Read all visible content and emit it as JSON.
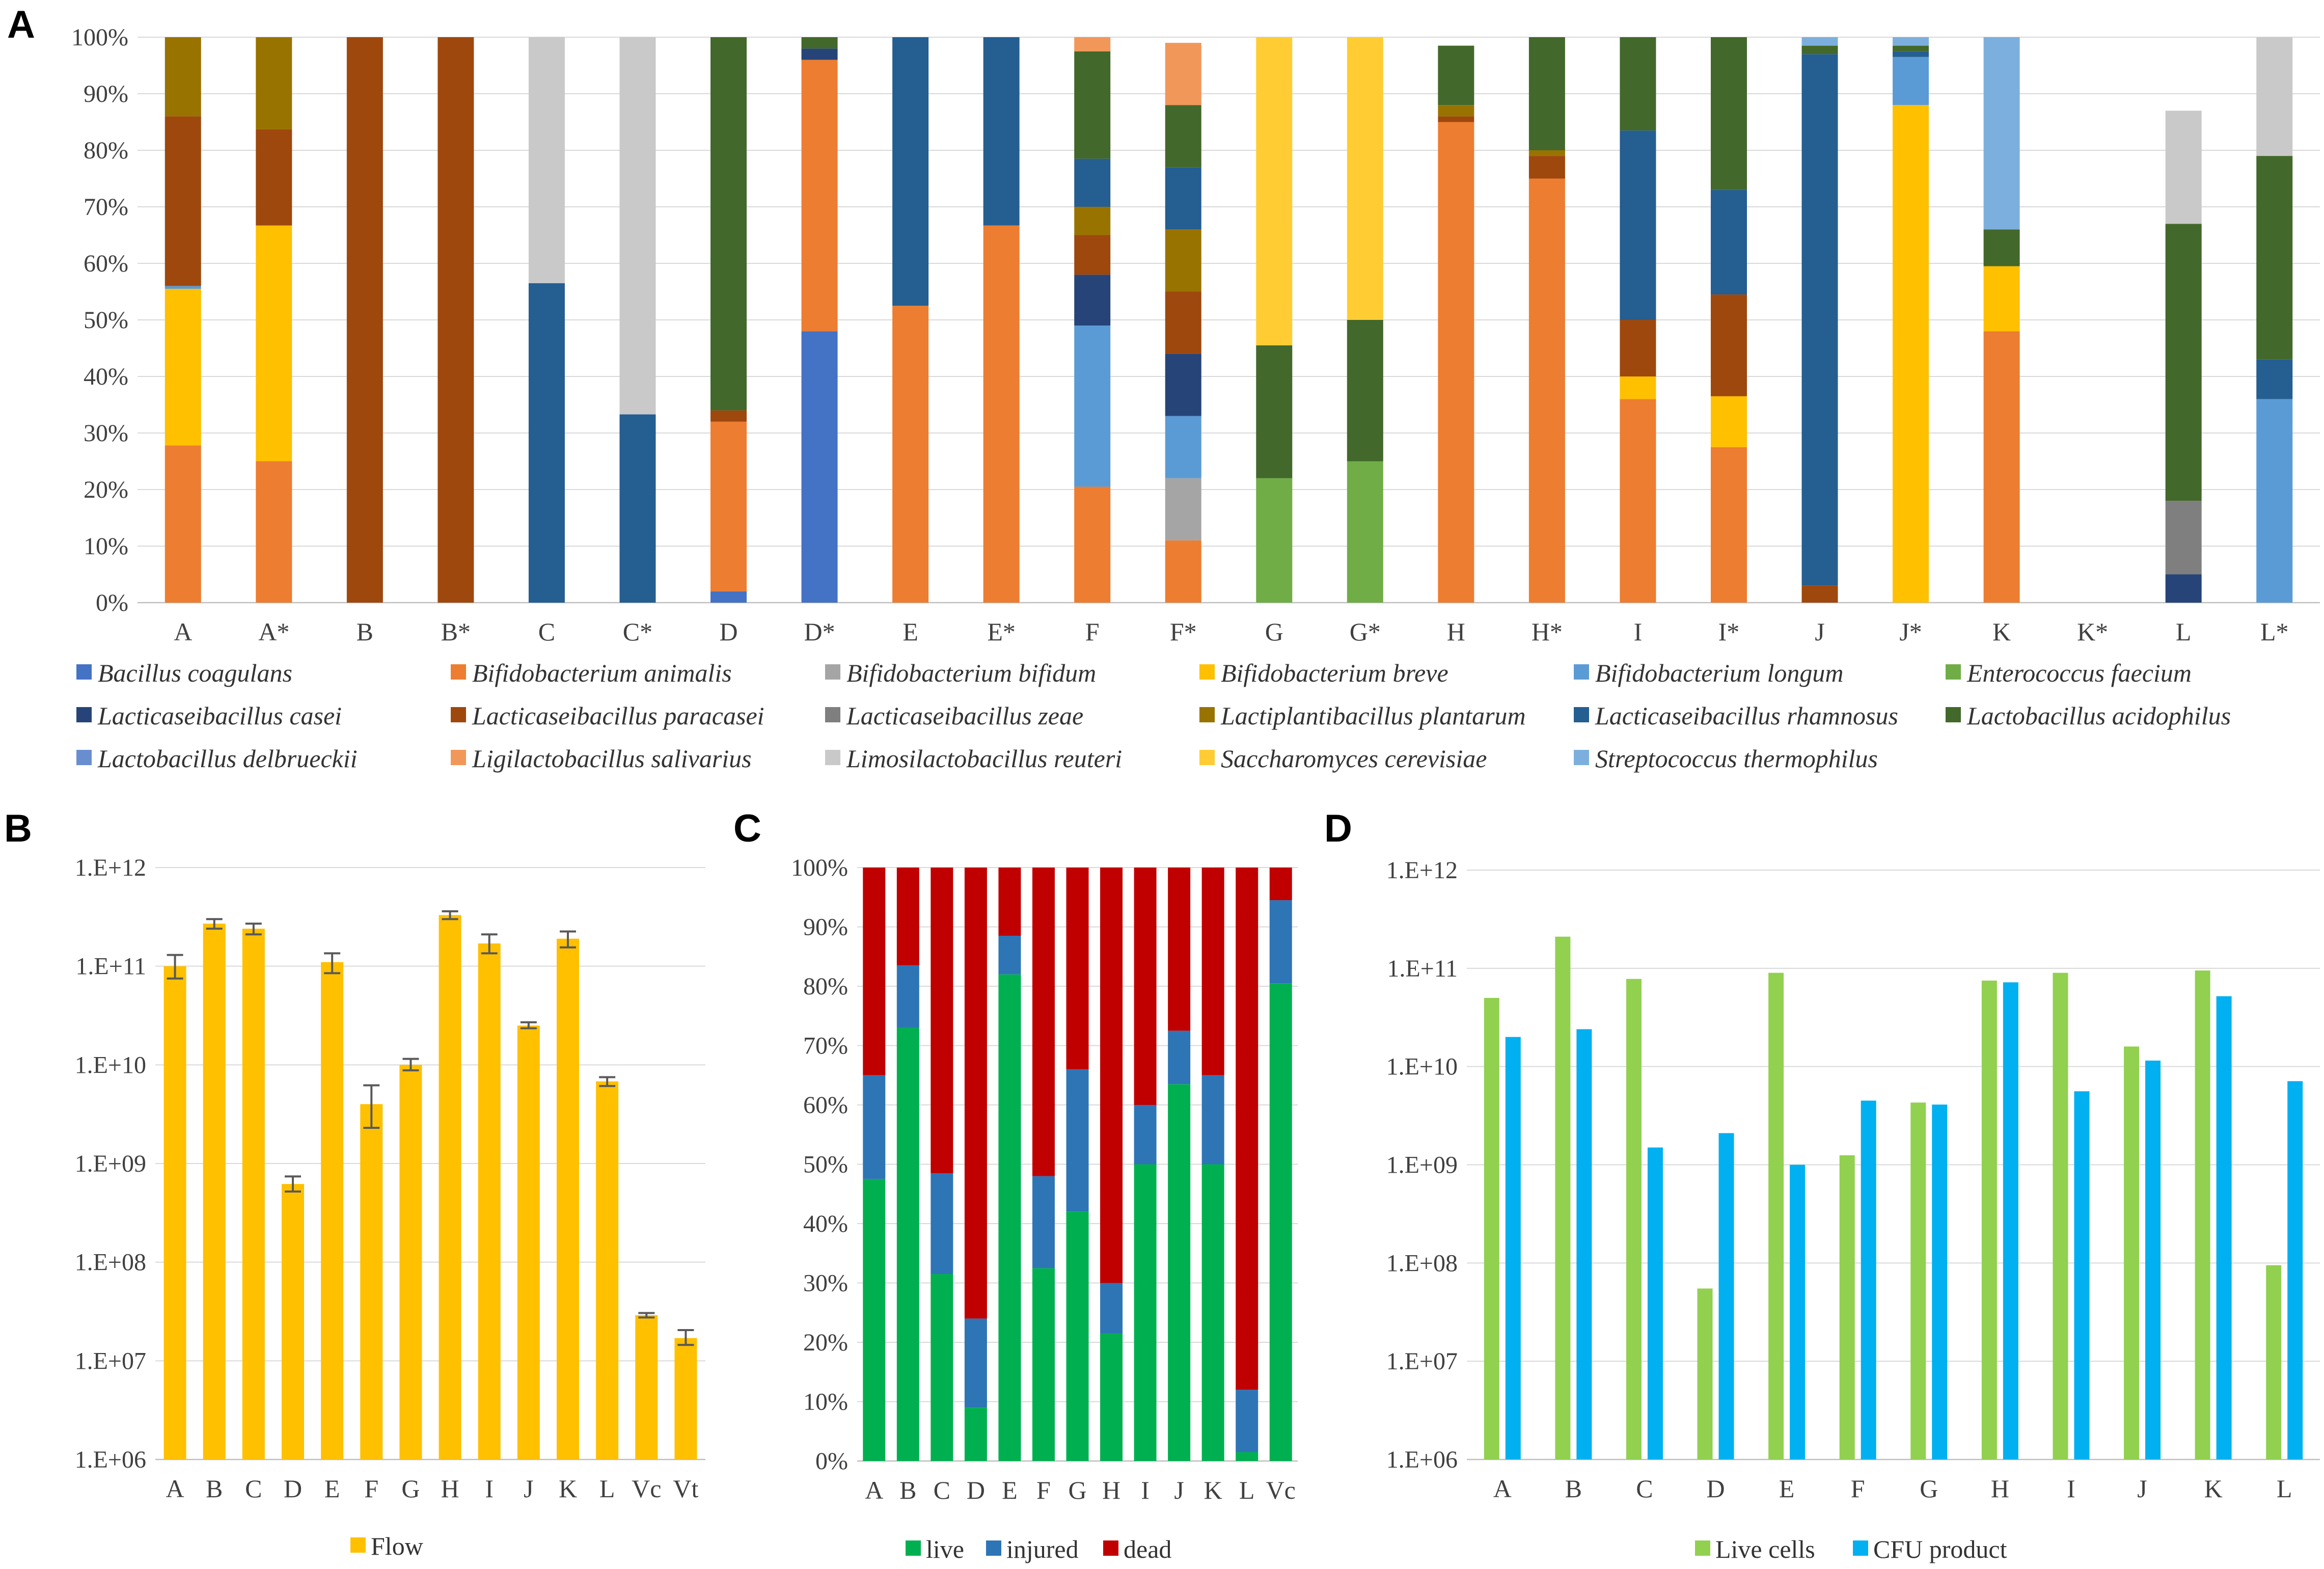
{
  "panels": [
    "A",
    "B",
    "C",
    "D"
  ],
  "chart_data": [
    {
      "panel": "A",
      "type": "bar",
      "stacked": true,
      "title": "",
      "xlabel": "",
      "ylabel": "",
      "ylim": [
        0,
        100
      ],
      "y_ticks": [
        "0%",
        "10%",
        "20%",
        "30%",
        "40%",
        "50%",
        "60%",
        "70%",
        "80%",
        "90%",
        "100%"
      ],
      "categories": [
        "A",
        "A*",
        "B",
        "B*",
        "C",
        "C*",
        "D",
        "D*",
        "E",
        "E*",
        "F",
        "F*",
        "G",
        "G*",
        "H",
        "H*",
        "I",
        "I*",
        "J",
        "J*",
        "K",
        "K*",
        "L",
        "L*"
      ],
      "series": [
        {
          "name": "Bacillus coagulans",
          "color": "#4472C4",
          "values": [
            0,
            0,
            0,
            0,
            0,
            0,
            2,
            48,
            0,
            0,
            0,
            0,
            0,
            0,
            0,
            0,
            0,
            0,
            0,
            0,
            0,
            0,
            0,
            0
          ]
        },
        {
          "name": "Bifidobacterium animalis",
          "color": "#ED7D31",
          "values": [
            27.8,
            25,
            0,
            0,
            0,
            0,
            30,
            48,
            52.5,
            66.7,
            20.5,
            11,
            0,
            0,
            85,
            75,
            36,
            27.5,
            0,
            0,
            48,
            0,
            0,
            0
          ]
        },
        {
          "name": "Bifidobacterium bifidum",
          "color": "#A5A5A5",
          "values": [
            0,
            0,
            0,
            0,
            0,
            0,
            0,
            0,
            0,
            0,
            0,
            11,
            0,
            0,
            0,
            0,
            0,
            0,
            0,
            0,
            0,
            0,
            0,
            0
          ]
        },
        {
          "name": "Bifidobacterium breve",
          "color": "#FFC000",
          "values": [
            27.7,
            41.7,
            0,
            0,
            0,
            0,
            0,
            0,
            0,
            0,
            0,
            0,
            0,
            0,
            0,
            0,
            4,
            9,
            0,
            88,
            11.5,
            0,
            0,
            0
          ]
        },
        {
          "name": "Bifidobacterium longum",
          "color": "#5B9BD5",
          "values": [
            0.5,
            0,
            0,
            0,
            0,
            0,
            0,
            0,
            0,
            0,
            28.5,
            11,
            0,
            0,
            0,
            0,
            0,
            0,
            0,
            8.5,
            0,
            0,
            0,
            36
          ]
        },
        {
          "name": "Enterococcus faecium",
          "color": "#70AD47",
          "values": [
            0,
            0,
            0,
            0,
            0,
            0,
            0,
            0,
            0,
            0,
            0,
            0,
            22,
            25,
            0,
            0,
            0,
            0,
            0,
            0,
            0,
            0,
            0,
            0
          ]
        },
        {
          "name": "Lacticaseibacillus casei",
          "color": "#264478",
          "values": [
            0,
            0,
            0,
            0,
            0,
            0,
            0,
            2,
            0,
            0,
            9,
            11,
            0,
            0,
            0,
            0,
            0,
            0,
            0,
            0,
            0,
            0,
            5,
            0
          ]
        },
        {
          "name": "Lacticaseibacillus paracasei",
          "color": "#9E480E",
          "values": [
            30,
            17,
            100,
            100,
            0,
            0,
            2,
            0,
            0,
            0,
            7,
            11,
            0,
            0,
            1,
            4,
            10,
            18,
            3,
            0,
            0,
            0,
            0,
            0
          ]
        },
        {
          "name": "Lacticaseibacillus zeae",
          "color": "#7F7F7F",
          "values": [
            0,
            0,
            0,
            0,
            0,
            0,
            0,
            0,
            0,
            0,
            0,
            0,
            0,
            0,
            0,
            0,
            0,
            0,
            0,
            0,
            0,
            0,
            13,
            0
          ]
        },
        {
          "name": "Lactiplantibacillus plantarum",
          "color": "#997300",
          "values": [
            14,
            16.7,
            0,
            0,
            0,
            0,
            0,
            0,
            0,
            0,
            5,
            11,
            0,
            0,
            2,
            1,
            0,
            0,
            0,
            0,
            0,
            0,
            0,
            0
          ]
        },
        {
          "name": "Lacticaseibacillus rhamnosus",
          "color": "#255E91",
          "values": [
            0,
            0,
            0,
            0,
            56.5,
            33.3,
            0,
            0,
            47.5,
            33.3,
            8.5,
            11,
            0,
            0,
            0,
            0,
            33.5,
            18.5,
            94,
            1,
            0,
            0,
            0,
            7
          ]
        },
        {
          "name": "Lactobacillus acidophilus",
          "color": "#43682B",
          "values": [
            0,
            0,
            0,
            0,
            0,
            0,
            66,
            2,
            0,
            0,
            19,
            11,
            23.5,
            25,
            10.5,
            20,
            16.5,
            27,
            1.5,
            1,
            6.5,
            0,
            49,
            36
          ]
        },
        {
          "name": "Lactobacillus delbrueckii",
          "color": "#698ED0",
          "values": [
            0,
            0,
            0,
            0,
            0,
            0,
            0,
            0,
            0,
            0,
            0,
            0,
            0,
            0,
            0,
            0,
            0,
            0,
            0,
            0,
            0,
            0,
            0,
            0
          ]
        },
        {
          "name": "Ligilactobacillus salivarius",
          "color": "#F1975A",
          "values": [
            0,
            0,
            0,
            0,
            0,
            0,
            0,
            0,
            0,
            0,
            2.5,
            11,
            0,
            0,
            0,
            0,
            0,
            0,
            0,
            0,
            0,
            0,
            0,
            0
          ]
        },
        {
          "name": "Limosilactobacillus reuteri",
          "color": "#C9C9C9",
          "values": [
            0,
            0,
            0,
            0,
            43.5,
            66.7,
            0,
            0,
            0,
            0,
            0,
            0,
            0,
            0,
            0,
            0,
            0,
            0,
            0,
            0,
            0,
            0,
            20,
            21
          ]
        },
        {
          "name": "Saccharomyces cerevisiae",
          "color": "#FFCD33",
          "values": [
            0,
            0,
            0,
            0,
            0,
            0,
            0,
            0,
            0,
            0,
            0,
            0,
            54.5,
            50,
            0,
            0,
            0,
            0,
            0,
            0,
            0,
            0,
            0,
            0
          ]
        },
        {
          "name": "Streptococcus thermophilus",
          "color": "#7CAFDD",
          "values": [
            0,
            0,
            0,
            0,
            0,
            0,
            0,
            0,
            0,
            0,
            0,
            0,
            0,
            0,
            0,
            0,
            0,
            0,
            1.5,
            1.5,
            34,
            0,
            0,
            0
          ]
        }
      ]
    },
    {
      "panel": "B",
      "type": "bar",
      "scale": "log",
      "title": "",
      "xlabel": "",
      "ylabel": "",
      "ylim": [
        1000000.0,
        1000000000000.0
      ],
      "y_ticks": [
        "1.E+06",
        "1.E+07",
        "1.E+08",
        "1.E+09",
        "1.E+10",
        "1.E+11",
        "1.E+12"
      ],
      "categories": [
        "A",
        "B",
        "C",
        "D",
        "E",
        "F",
        "G",
        "H",
        "I",
        "J",
        "K",
        "L",
        "Vc",
        "Vt"
      ],
      "series": [
        {
          "name": "Flow",
          "color": "#FFC000",
          "values": [
            100000000000.0,
            270000000000.0,
            240000000000.0,
            620000000.0,
            110000000000.0,
            4000000000.0,
            10000000000.0,
            330000000000.0,
            170000000000.0,
            25000000000.0,
            190000000000.0,
            6800000000.0,
            29000000.0,
            17000000.0
          ],
          "error_low": [
            75000000000.0,
            240000000000.0,
            210000000000.0,
            520000000.0,
            85000000000.0,
            2300000000.0,
            8800000000.0,
            300000000000.0,
            135000000000.0,
            23500000000.0,
            155000000000.0,
            6100000000.0,
            27500000.0,
            14500000.0
          ],
          "error_high": [
            130000000000.0,
            300000000000.0,
            270000000000.0,
            740000000.0,
            135000000000.0,
            6200000000.0,
            11500000000.0,
            360000000000.0,
            210000000000.0,
            27000000000.0,
            225000000000.0,
            7500000000.0,
            30500000.0,
            20500000.0
          ]
        }
      ]
    },
    {
      "panel": "C",
      "type": "bar",
      "stacked": true,
      "title": "",
      "xlabel": "",
      "ylabel": "",
      "ylim": [
        0,
        100
      ],
      "y_ticks": [
        "0%",
        "10%",
        "20%",
        "30%",
        "40%",
        "50%",
        "60%",
        "70%",
        "80%",
        "90%",
        "100%"
      ],
      "categories": [
        "A",
        "B",
        "C",
        "D",
        "E",
        "F",
        "G",
        "H",
        "I",
        "J",
        "K",
        "L",
        "Vc"
      ],
      "series": [
        {
          "name": "live",
          "color": "#00B050",
          "values": [
            47.5,
            73,
            31.5,
            9,
            82,
            32.5,
            42,
            21.5,
            50,
            63.5,
            50,
            1.5,
            80.5
          ]
        },
        {
          "name": "injured",
          "color": "#2E75B6",
          "values": [
            17.5,
            10.5,
            17,
            15,
            6.5,
            15.5,
            24,
            8.5,
            10,
            9,
            15,
            10.5,
            14
          ]
        },
        {
          "name": "dead",
          "color": "#C00000",
          "values": [
            35,
            16.5,
            51.5,
            76,
            11.5,
            52,
            34,
            70,
            40,
            27.5,
            35,
            88,
            5.5
          ]
        }
      ]
    },
    {
      "panel": "D",
      "type": "bar",
      "scale": "log",
      "title": "",
      "xlabel": "",
      "ylabel": "",
      "ylim": [
        1000000.0,
        1000000000000.0
      ],
      "y_ticks": [
        "1.E+06",
        "1.E+07",
        "1.E+08",
        "1.E+09",
        "1.E+10",
        "1.E+11",
        "1.E+12"
      ],
      "categories": [
        "A",
        "B",
        "C",
        "D",
        "E",
        "F",
        "G",
        "H",
        "I",
        "J",
        "K",
        "L"
      ],
      "series": [
        {
          "name": "Live cells",
          "color": "#92D050",
          "values": [
            50000000000.0,
            210000000000.0,
            78000000000.0,
            55000000.0,
            90000000000.0,
            1250000000.0,
            4300000000.0,
            75000000000.0,
            90000000000.0,
            16000000000.0,
            95000000000.0,
            95000000.0
          ]
        },
        {
          "name": "CFU product",
          "color": "#00B0F0",
          "values": [
            20000000000.0,
            24000000000.0,
            1500000000.0,
            2100000000.0,
            1000000000.0,
            4500000000.0,
            4100000000.0,
            72000000000.0,
            5600000000.0,
            11500000000.0,
            52000000000.0,
            7100000000.0
          ]
        }
      ]
    }
  ]
}
